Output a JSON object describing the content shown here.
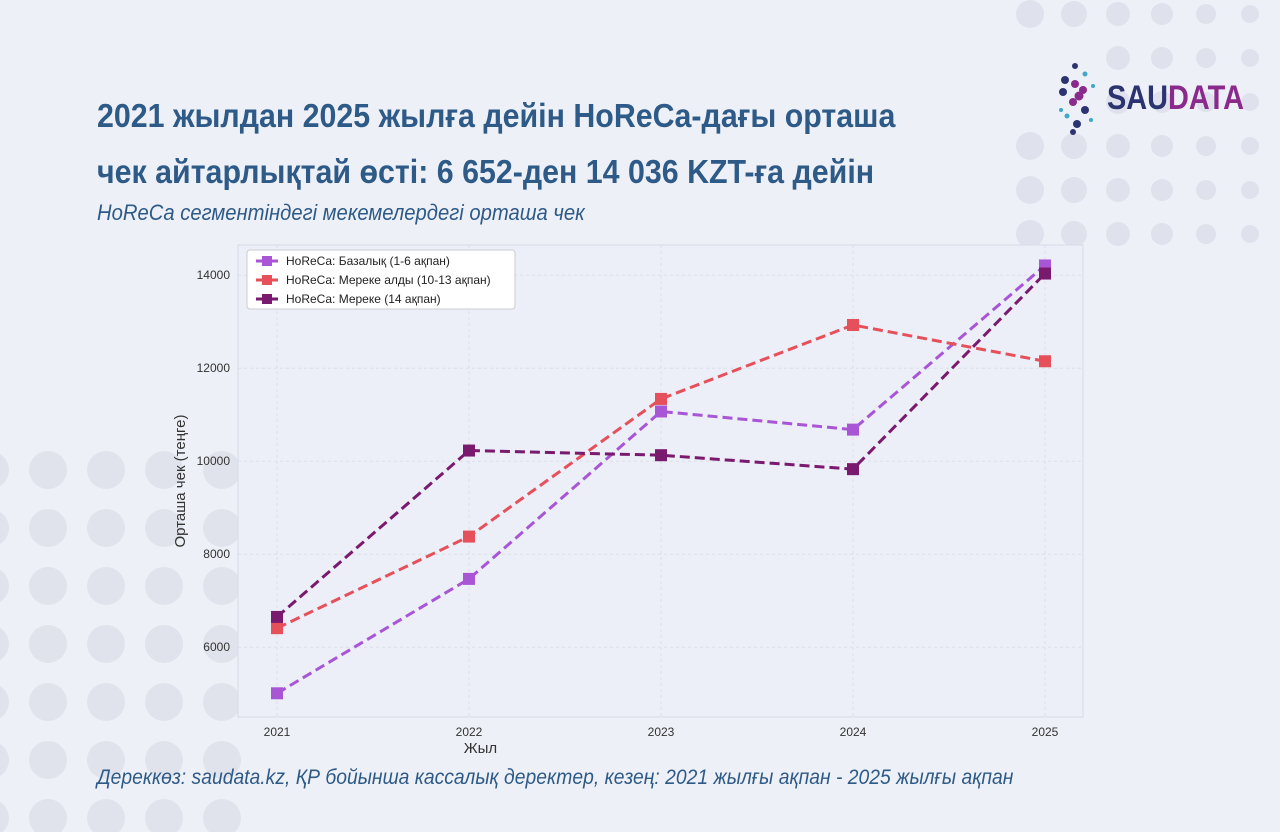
{
  "title_line1": "2021 жылдан 2025 жылға дейін HoReCa-дағы орташа",
  "title_line2": "чек айтарлықтай өсті: 6 652-ден 14 036 KZT-ға дейін",
  "subtitle": "HoReCa сегментіндегі мекемелердегі орташа чек",
  "source": "Дереккөз: saudata.kz, ҚР бойынша кассалық деректер, кезең: 2021 жылғы ақпан - 2025 жылғы ақпан",
  "logo": {
    "part1": "SAU",
    "part2": "DATA"
  },
  "chart_data": {
    "type": "line",
    "xlabel": "Жыл",
    "ylabel": "Орташа чек (теңге)",
    "x": [
      2021,
      2022,
      2023,
      2024,
      2025
    ],
    "yticks": [
      6000,
      8000,
      10000,
      12000,
      14000
    ],
    "ylim": [
      4500,
      14650
    ],
    "grid": true,
    "legend": "top-left",
    "series": [
      {
        "name": "HoReCa: Базалық (1-6 ақпан)",
        "color": "#a855d6",
        "values": [
          5010,
          7470,
          11070,
          10680,
          14210
        ]
      },
      {
        "name": "HoReCa: Мереке алды (10-13 ақпан)",
        "color": "#e5505a",
        "values": [
          6410,
          8380,
          11340,
          12930,
          12150
        ]
      },
      {
        "name": "HoReCa: Мереке (14 ақпан)",
        "color": "#7a1a6e",
        "values": [
          6652,
          10230,
          10130,
          9830,
          14036
        ]
      }
    ]
  }
}
